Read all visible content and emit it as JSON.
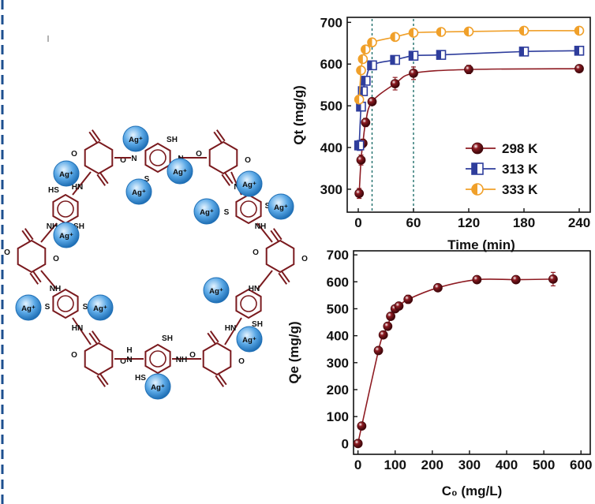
{
  "colors": {
    "c298": "#8e1b22",
    "c313": "#2e3d9c",
    "c333": "#f0a02a",
    "bond": "#7a1a1e",
    "ion_fill": "#5aa8e6",
    "ion_edge": "#1f6fb5",
    "guide": "#1f6f6b",
    "frame": "#1d4f8f"
  },
  "molecule": {
    "ion_label": "Ag⁺",
    "labels": {
      "nh": "NH",
      "hn": "HN",
      "n": "N",
      "h": "H",
      "sh": "SH",
      "hs": "HS",
      "s": "S",
      "o": "O"
    }
  },
  "chart_data": [
    {
      "type": "line",
      "id": "kinetics",
      "xlabel": "Time (min)",
      "ylabel": "Qt (mg/g)",
      "xlim": [
        -12,
        252
      ],
      "ylim": [
        245,
        712
      ],
      "xticks": [
        0,
        60,
        120,
        180,
        240
      ],
      "yticks": [
        300,
        400,
        500,
        600,
        700
      ],
      "guides_x": [
        15,
        60
      ],
      "legend_position": "right",
      "series": [
        {
          "name": "298 K",
          "color_key": "c298",
          "marker": "circle",
          "x": [
            1,
            3,
            5,
            8,
            15,
            40,
            60,
            120,
            240
          ],
          "y": [
            290,
            370,
            410,
            460,
            510,
            553,
            578,
            587,
            589
          ],
          "err": [
            12,
            12,
            10,
            10,
            6,
            15,
            15,
            10,
            0
          ]
        },
        {
          "name": "313 K",
          "color_key": "c313",
          "marker": "square",
          "x": [
            1,
            3,
            5,
            8,
            15,
            40,
            60,
            90,
            180,
            240
          ],
          "y": [
            405,
            498,
            535,
            560,
            597,
            610,
            620,
            622,
            630,
            632
          ],
          "err": [
            12,
            10,
            8,
            8,
            6,
            10,
            6,
            6,
            6,
            8
          ]
        },
        {
          "name": "333 K",
          "color_key": "c333",
          "marker": "circle-half",
          "x": [
            1,
            3,
            5,
            8,
            15,
            40,
            60,
            90,
            120,
            180,
            240
          ],
          "y": [
            515,
            585,
            612,
            635,
            652,
            665,
            675,
            677,
            678,
            680,
            680
          ],
          "err": [
            0,
            0,
            0,
            0,
            0,
            0,
            0,
            0,
            0,
            0,
            0
          ]
        }
      ]
    },
    {
      "type": "line",
      "id": "isotherm",
      "xlabel": "C₀ (mg/L)",
      "ylabel": "Qe (mg/g)",
      "xlim": [
        -12,
        625
      ],
      "ylim": [
        -40,
        715
      ],
      "xticks": [
        0,
        100,
        200,
        300,
        400,
        500,
        600
      ],
      "yticks": [
        0,
        100,
        200,
        300,
        400,
        500,
        600,
        700
      ],
      "series": [
        {
          "name": "298 K",
          "color_key": "c298",
          "marker": "circle",
          "x": [
            0,
            10,
            55,
            68,
            80,
            88,
            100,
            110,
            135,
            215,
            320,
            425,
            525
          ],
          "y": [
            0,
            65,
            345,
            403,
            435,
            472,
            500,
            510,
            535,
            578,
            608,
            608,
            610
          ],
          "err": [
            0,
            0,
            10,
            10,
            10,
            10,
            10,
            10,
            15,
            10,
            10,
            10,
            25
          ]
        }
      ]
    }
  ]
}
